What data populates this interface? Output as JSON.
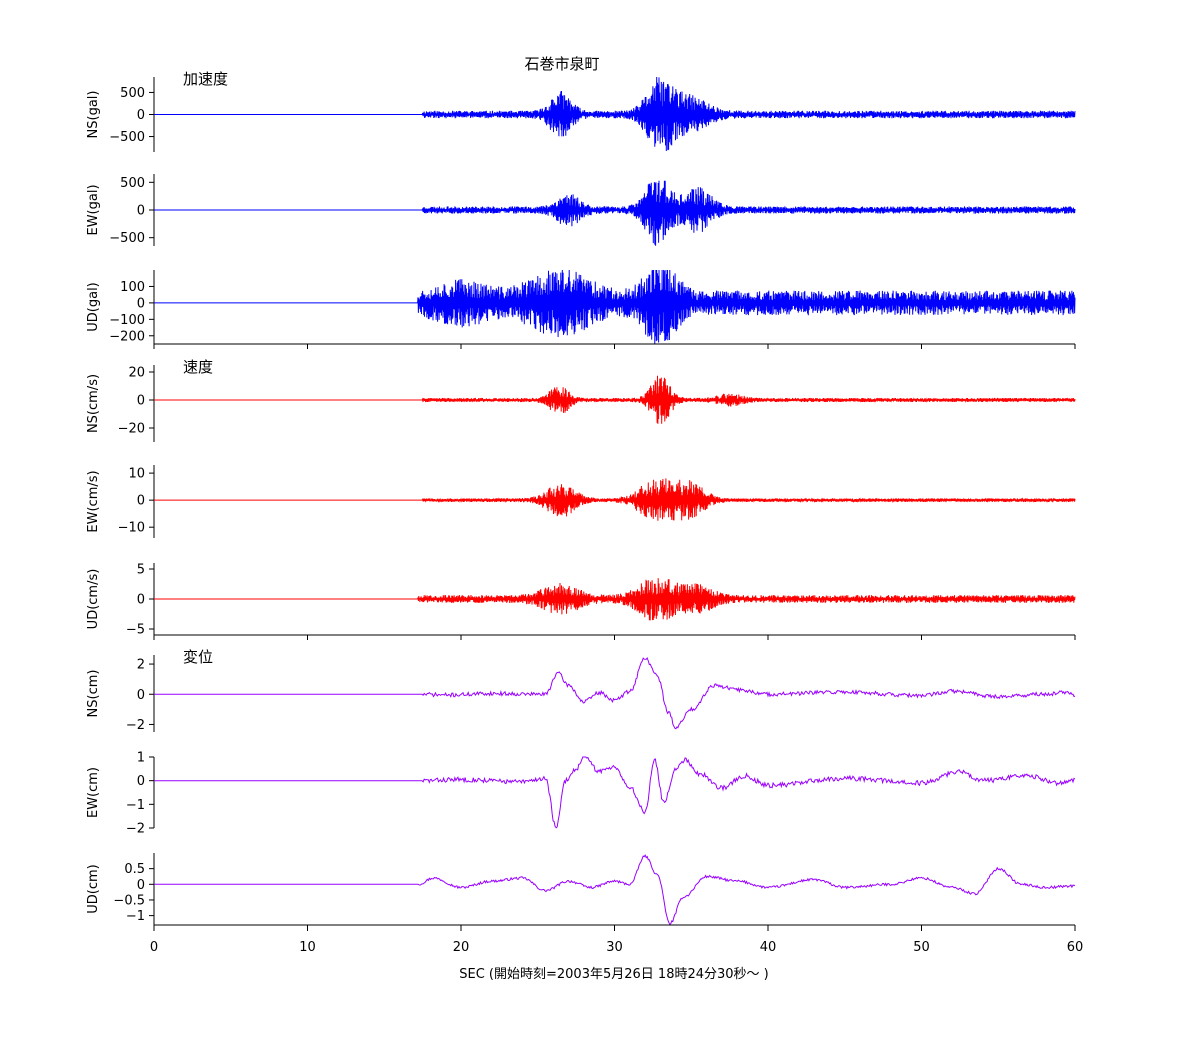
{
  "chart_data": {
    "type": "line",
    "title": "石巻市泉町",
    "xlabel": "SEC (開始時刻=2003年5月26日 18時24分30秒～ )",
    "xlim": [
      0,
      60
    ],
    "xticks": [
      0,
      10,
      20,
      30,
      40,
      50,
      60
    ],
    "groups": [
      {
        "label": "加速度",
        "color": "#0000ff"
      },
      {
        "label": "速度",
        "color": "#ff0000"
      },
      {
        "label": "変位",
        "color": "#9900ff"
      }
    ],
    "panels": [
      {
        "ylabel": "NS(gal)",
        "group": 0,
        "ylim": [
          -850,
          850
        ],
        "yticks": [
          500,
          0,
          -500
        ],
        "peaks": [
          {
            "t": 26.5,
            "w": 0.9,
            "a": 0.55
          },
          {
            "t": 33.0,
            "w": 1.1,
            "a": 0.95
          },
          {
            "t": 35.0,
            "w": 1.5,
            "a": 0.4
          }
        ],
        "base": 0.1,
        "onset": 17.5,
        "rough": 1.0,
        "seed": 11
      },
      {
        "ylabel": "EW(gal)",
        "group": 0,
        "ylim": [
          -650,
          650
        ],
        "yticks": [
          500,
          0,
          -500
        ],
        "peaks": [
          {
            "t": 27.0,
            "w": 1.0,
            "a": 0.4
          },
          {
            "t": 32.8,
            "w": 1.0,
            "a": 0.95
          },
          {
            "t": 35.4,
            "w": 1.2,
            "a": 0.55
          }
        ],
        "base": 0.1,
        "onset": 17.5,
        "rough": 1.0,
        "seed": 23
      },
      {
        "ylabel": "UD(gal)",
        "group": 0,
        "ylim": [
          -250,
          200
        ],
        "yticks": [
          100,
          0,
          -100,
          -200
        ],
        "peaks": [
          {
            "t": 20.0,
            "w": 2.0,
            "a": 0.3
          },
          {
            "t": 26.5,
            "w": 2.5,
            "a": 0.55
          },
          {
            "t": 33.0,
            "w": 1.2,
            "a": 0.95
          }
        ],
        "base": 0.3,
        "onset": 17.2,
        "rough": 1.0,
        "seed": 37
      },
      {
        "ylabel": "NS(cm/s)",
        "group": 1,
        "ylim": [
          -30,
          25
        ],
        "yticks": [
          20,
          0,
          -20
        ],
        "peaks": [
          {
            "t": 26.4,
            "w": 0.8,
            "a": 0.55
          },
          {
            "t": 33.0,
            "w": 0.8,
            "a": 0.95
          },
          {
            "t": 37.5,
            "w": 1.0,
            "a": 0.2
          }
        ],
        "base": 0.08,
        "onset": 17.5,
        "rough": 0.6,
        "seed": 41
      },
      {
        "ylabel": "EW(cm/s)",
        "group": 1,
        "ylim": [
          -14,
          13
        ],
        "yticks": [
          10,
          0,
          -10
        ],
        "peaks": [
          {
            "t": 26.5,
            "w": 1.2,
            "a": 0.7
          },
          {
            "t": 32.8,
            "w": 1.5,
            "a": 0.9
          },
          {
            "t": 35.0,
            "w": 1.2,
            "a": 0.7
          }
        ],
        "base": 0.08,
        "onset": 17.5,
        "rough": 0.6,
        "seed": 53
      },
      {
        "ylabel": "UD(cm/s)",
        "group": 1,
        "ylim": [
          -6,
          6
        ],
        "yticks": [
          5,
          0,
          -5
        ],
        "peaks": [
          {
            "t": 26.5,
            "w": 1.5,
            "a": 0.6
          },
          {
            "t": 32.8,
            "w": 1.5,
            "a": 0.95
          },
          {
            "t": 35.5,
            "w": 1.2,
            "a": 0.5
          }
        ],
        "base": 0.18,
        "onset": 17.2,
        "rough": 0.6,
        "seed": 67
      },
      {
        "ylabel": "NS(cm)",
        "group": 2,
        "ylim": [
          -2.5,
          2.6
        ],
        "yticks": [
          2,
          0,
          -2
        ],
        "keys": [
          [
            0,
            0
          ],
          [
            17.5,
            0
          ],
          [
            19,
            -0.05
          ],
          [
            22,
            0.05
          ],
          [
            25.5,
            0.0
          ],
          [
            26.3,
            1.4
          ],
          [
            27,
            0.6
          ],
          [
            28,
            -0.5
          ],
          [
            29,
            0.1
          ],
          [
            30,
            -0.4
          ],
          [
            31,
            0.2
          ],
          [
            32.0,
            2.4
          ],
          [
            32.8,
            1.2
          ],
          [
            33.5,
            -1.2
          ],
          [
            34.0,
            -2.2
          ],
          [
            35.0,
            -1.0
          ],
          [
            36.5,
            0.6
          ],
          [
            38,
            0.3
          ],
          [
            40,
            0.0
          ],
          [
            45,
            0.15
          ],
          [
            50,
            -0.1
          ],
          [
            52,
            0.2
          ],
          [
            55,
            -0.15
          ],
          [
            58,
            0.0
          ],
          [
            59.5,
            0.15
          ],
          [
            60,
            -0.1
          ]
        ],
        "jitter": 0.05,
        "seed": 71
      },
      {
        "ylabel": "EW(cm)",
        "group": 2,
        "ylim": [
          -2,
          1
        ],
        "yticks": [
          1,
          0,
          -1,
          -2
        ],
        "keys": [
          [
            0,
            0
          ],
          [
            17.5,
            0
          ],
          [
            20,
            0.05
          ],
          [
            24,
            -0.05
          ],
          [
            25.5,
            0.1
          ],
          [
            26.2,
            -2.0
          ],
          [
            26.8,
            0.0
          ],
          [
            27.5,
            0.5
          ],
          [
            28,
            1.0
          ],
          [
            29,
            0.4
          ],
          [
            30,
            0.6
          ],
          [
            31,
            -0.3
          ],
          [
            32,
            -1.3
          ],
          [
            32.6,
            0.9
          ],
          [
            33.2,
            -0.9
          ],
          [
            34,
            0.5
          ],
          [
            34.6,
            0.9
          ],
          [
            35.5,
            0.3
          ],
          [
            37,
            -0.3
          ],
          [
            38.5,
            0.2
          ],
          [
            40,
            -0.2
          ],
          [
            45,
            0.1
          ],
          [
            50,
            -0.1
          ],
          [
            52.5,
            0.4
          ],
          [
            54,
            0.0
          ],
          [
            57,
            0.2
          ],
          [
            59,
            -0.1
          ],
          [
            60,
            0.0
          ]
        ],
        "jitter": 0.05,
        "seed": 83
      },
      {
        "ylabel": "UD(cm)",
        "group": 2,
        "ylim": [
          -1.3,
          1.0
        ],
        "yticks": [
          0.5,
          0,
          -0.5,
          -1
        ],
        "keys": [
          [
            0,
            0
          ],
          [
            17.2,
            0
          ],
          [
            18.2,
            0.2
          ],
          [
            20,
            -0.1
          ],
          [
            22,
            0.1
          ],
          [
            24,
            0.2
          ],
          [
            25.5,
            -0.2
          ],
          [
            27,
            0.1
          ],
          [
            28.5,
            -0.1
          ],
          [
            30,
            0.1
          ],
          [
            31,
            0.0
          ],
          [
            32.0,
            0.9
          ],
          [
            32.8,
            0.3
          ],
          [
            33.6,
            -1.25
          ],
          [
            34.5,
            -0.4
          ],
          [
            36,
            0.25
          ],
          [
            38,
            0.1
          ],
          [
            40,
            -0.1
          ],
          [
            43,
            0.15
          ],
          [
            45,
            -0.1
          ],
          [
            48,
            0.0
          ],
          [
            50,
            0.2
          ],
          [
            52,
            -0.1
          ],
          [
            53.5,
            -0.3
          ],
          [
            55,
            0.5
          ],
          [
            56.5,
            0.0
          ],
          [
            58,
            -0.1
          ],
          [
            60,
            -0.05
          ]
        ],
        "jitter": 0.03,
        "seed": 97
      }
    ]
  }
}
